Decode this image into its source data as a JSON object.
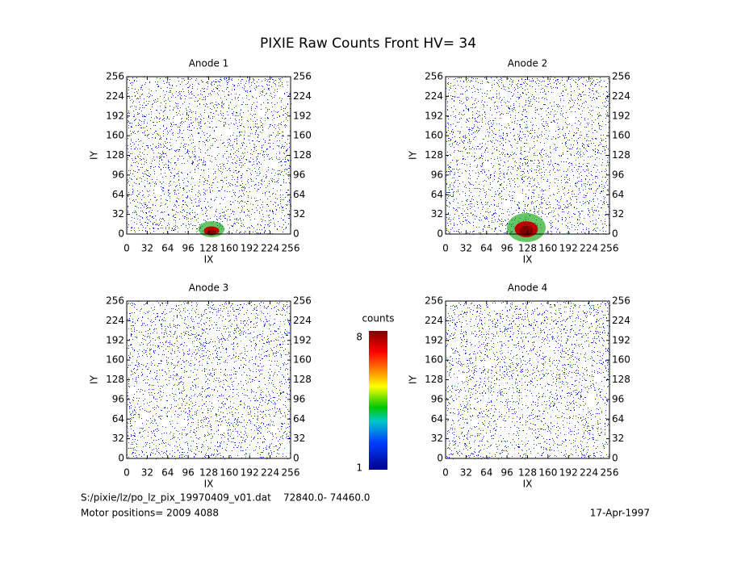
{
  "title": "PIXIE Raw Counts Front HV= 34",
  "chart_data": [
    {
      "type": "heatmap",
      "title": "Anode 1",
      "xlabel": "IX",
      "ylabel": "IY",
      "xlim": [
        0,
        256
      ],
      "ylim": [
        0,
        256
      ],
      "xticks": [
        0,
        32,
        64,
        96,
        128,
        160,
        192,
        224,
        256
      ],
      "yticks": [
        0,
        32,
        64,
        96,
        128,
        160,
        192,
        224,
        256
      ]
    },
    {
      "type": "heatmap",
      "title": "Anode 2",
      "xlabel": "IX",
      "ylabel": "IY",
      "xlim": [
        0,
        256
      ],
      "ylim": [
        0,
        256
      ],
      "xticks": [
        0,
        32,
        64,
        96,
        128,
        160,
        192,
        224,
        256
      ],
      "yticks": [
        0,
        32,
        64,
        96,
        128,
        160,
        192,
        224,
        256
      ]
    },
    {
      "type": "heatmap",
      "title": "Anode 3",
      "xlabel": "IX",
      "ylabel": "IY",
      "xlim": [
        0,
        256
      ],
      "ylim": [
        0,
        256
      ],
      "xticks": [
        0,
        32,
        64,
        96,
        128,
        160,
        192,
        224,
        256
      ],
      "yticks": [
        0,
        32,
        64,
        96,
        128,
        160,
        192,
        224,
        256
      ]
    },
    {
      "type": "heatmap",
      "title": "Anode 4",
      "xlabel": "IX",
      "ylabel": "IY",
      "xlim": [
        0,
        256
      ],
      "ylim": [
        0,
        256
      ],
      "xticks": [
        0,
        32,
        64,
        96,
        128,
        160,
        192,
        224,
        256
      ],
      "yticks": [
        0,
        32,
        64,
        96,
        128,
        160,
        192,
        224,
        256
      ]
    },
    {
      "type": "colorbar",
      "title": "counts",
      "ylim": [
        1,
        8
      ],
      "yticks": [
        1,
        8
      ]
    }
  ],
  "footer": {
    "file": "S:/pixie/lz/po_lz_pix_19970409_v01.dat    72840.0- 74460.0",
    "motor": "Motor positions= 2009 4088",
    "date": "17-Apr-1997"
  }
}
